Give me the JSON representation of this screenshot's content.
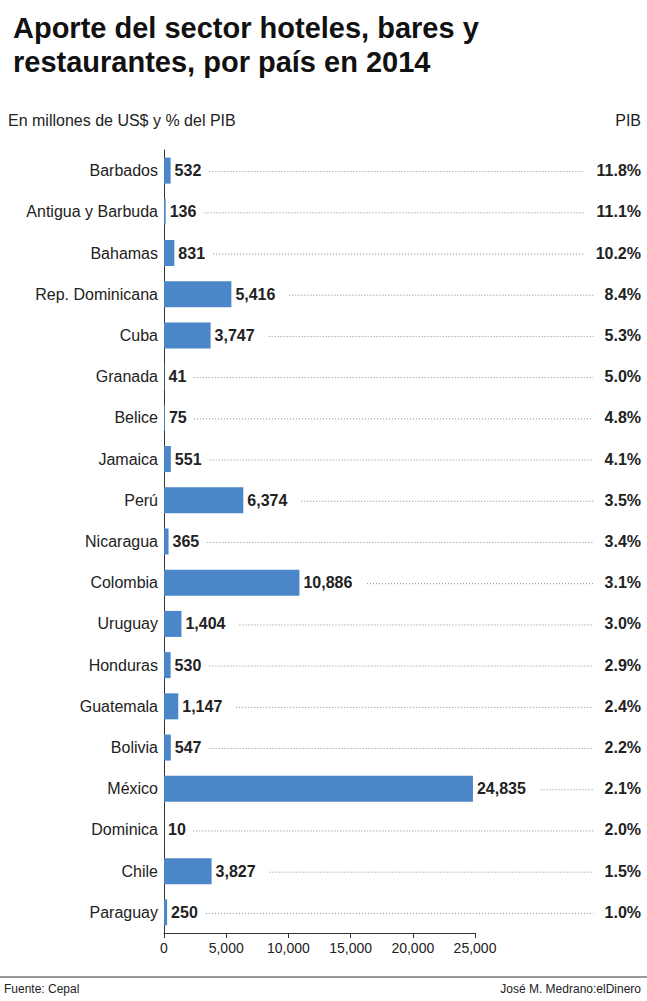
{
  "chart_data": {
    "type": "bar",
    "orientation": "horizontal",
    "title": "Aporte del sector hoteles, bares y restaurantes, por país en 2014",
    "subtitle": "En millones de US$ y % del PIB",
    "source": "Fuente: Cepal",
    "credit": "José M. Medrano:elDinero",
    "categories": [
      "Barbados",
      "Antigua y Barbuda",
      "Bahamas",
      "Rep. Dominicana",
      "Cuba",
      "Granada",
      "Belice",
      "Jamaica",
      "Perú",
      "Nicaragua",
      "Colombia",
      "Uruguay",
      "Honduras",
      "Guatemala",
      "Bolivia",
      "México",
      "Dominica",
      "Chile",
      "Paraguay"
    ],
    "values": [
      532,
      136,
      831,
      5416,
      3747,
      41,
      75,
      551,
      6374,
      365,
      10886,
      1404,
      530,
      1147,
      547,
      24835,
      10,
      3827,
      250
    ],
    "value_labels": [
      "532",
      "136",
      "831",
      "5,416",
      "3,747",
      "41",
      "75",
      "551",
      "6,374",
      "365",
      "10,886",
      "1,404",
      "530",
      "1,147",
      "547",
      "24,835",
      "10",
      "3,827",
      "250"
    ],
    "color": "#4a86c8",
    "data_labels": true,
    "pib": {
      "header": "PIB",
      "values": [
        11.8,
        11.1,
        10.2,
        8.4,
        5.3,
        5.0,
        4.8,
        4.1,
        3.5,
        3.4,
        3.1,
        3.0,
        2.9,
        2.4,
        2.2,
        2.1,
        2.0,
        1.5,
        1.0
      ],
      "value_labels": [
        "11.8%",
        "11.1%",
        "10.2%",
        "8.4%",
        "5.3%",
        "5.0%",
        "4.8%",
        "4.1%",
        "3.5%",
        "3.4%",
        "3.1%",
        "3.0%",
        "2.9%",
        "2.4%",
        "2.2%",
        "2.1%",
        "2.0%",
        "1.5%",
        "1.0%"
      ]
    },
    "xlim": [
      0,
      25000
    ],
    "xticks": [
      0,
      {
        "value": 5000,
        "label": "5,000"
      },
      {
        "value": 10000,
        "label": "10,000"
      },
      {
        "value": 15000,
        "label": "15,000"
      },
      {
        "value": 20000,
        "label": "20,000"
      },
      {
        "value": 25000,
        "label": "25,000"
      }
    ],
    "grid": false
  }
}
